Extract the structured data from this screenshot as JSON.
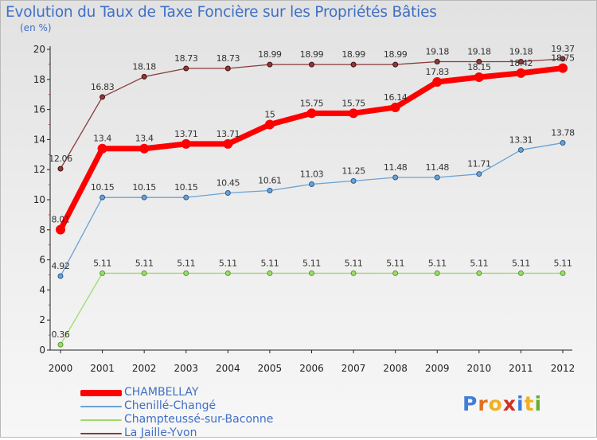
{
  "title": "Evolution du Taux de Taxe Foncière sur les Propriétés Bâties",
  "unit_label": "(en %)",
  "logo": {
    "text": "Proxiti",
    "letters": [
      "P",
      "r",
      "o",
      "x",
      "i",
      "t",
      "i"
    ],
    "colors": [
      "#3f7fd8",
      "#e07020",
      "#f0b020",
      "#d03020",
      "#3f7fd8",
      "#f0b020",
      "#60b030"
    ]
  },
  "chart_data": {
    "type": "line",
    "title": "Evolution du Taux de Taxe Foncière sur les Propriétés Bâties",
    "ylabel": "(en %)",
    "xlabel": "",
    "ylim": [
      0,
      20
    ],
    "yticks": [
      "0",
      "2",
      "4",
      "6",
      "8",
      "10",
      "12",
      "14",
      "16",
      "18",
      "20"
    ],
    "categories": [
      "2000",
      "2001",
      "2002",
      "2003",
      "2004",
      "2005",
      "2006",
      "2007",
      "2008",
      "2009",
      "2010",
      "2011",
      "2012"
    ],
    "series": [
      {
        "name": "CHAMBELLAY",
        "color": "#ff0000",
        "values": [
          8.01,
          13.4,
          13.4,
          13.71,
          13.71,
          15,
          15.75,
          15.75,
          16.14,
          17.83,
          18.15,
          18.42,
          18.75
        ],
        "labels": [
          "8.01",
          "13.4",
          "13.4",
          "13.71",
          "13.71",
          "15",
          "15.75",
          "15.75",
          "16.14",
          "17.83",
          "18.15",
          "18.42",
          "18.75"
        ]
      },
      {
        "name": "Chenillé-Changé",
        "color": "#6aa2d4",
        "values": [
          4.92,
          10.15,
          10.15,
          10.15,
          10.45,
          10.61,
          11.03,
          11.25,
          11.48,
          11.48,
          11.71,
          13.31,
          13.78
        ],
        "labels": [
          "4.92",
          "10.15",
          "10.15",
          "10.15",
          "10.45",
          "10.61",
          "11.03",
          "11.25",
          "11.48",
          "11.48",
          "11.71",
          "13.31",
          "13.78"
        ]
      },
      {
        "name": "Champteussé-sur-Baconne",
        "color": "#9fdb6a",
        "values": [
          0.36,
          5.11,
          5.11,
          5.11,
          5.11,
          5.11,
          5.11,
          5.11,
          5.11,
          5.11,
          5.11,
          5.11,
          5.11
        ],
        "labels": [
          "0.36",
          "5.11",
          "5.11",
          "5.11",
          "5.11",
          "5.11",
          "5.11",
          "5.11",
          "5.11",
          "5.11",
          "5.11",
          "5.11",
          "5.11"
        ]
      },
      {
        "name": "La Jaille-Yvon",
        "color": "#8a3a3a",
        "values": [
          12.06,
          16.83,
          18.18,
          18.73,
          18.73,
          18.99,
          18.99,
          18.99,
          18.99,
          19.18,
          19.18,
          19.18,
          19.37
        ],
        "labels": [
          "12.06",
          "16.83",
          "18.18",
          "18.73",
          "18.73",
          "18.99",
          "18.99",
          "18.99",
          "18.99",
          "19.18",
          "19.18",
          "19.18",
          "19.37"
        ]
      }
    ],
    "legend_position": "bottom-left",
    "grid": false
  }
}
